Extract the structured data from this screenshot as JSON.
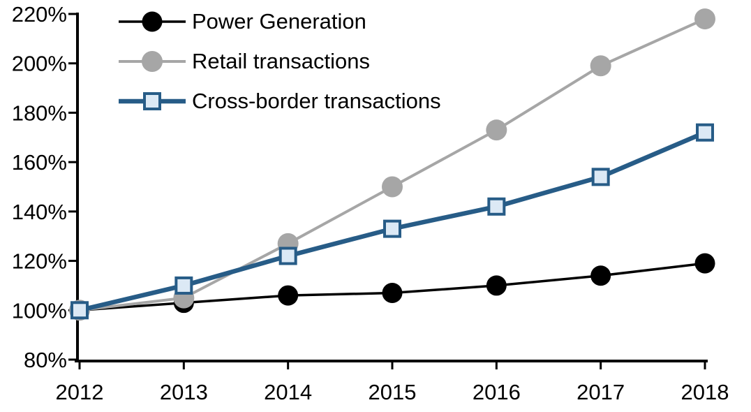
{
  "chart_data": {
    "type": "line",
    "title": "",
    "xlabel": "",
    "ylabel": "",
    "x": [
      "2012",
      "2013",
      "2014",
      "2015",
      "2016",
      "2017",
      "2018"
    ],
    "y_axis": {
      "min": 80,
      "max": 220,
      "step": 20,
      "unit": "%"
    },
    "grid": false,
    "legend_position": "top-left-inside",
    "background_color": "#FFFFFF",
    "axis_color": "#000000",
    "series": [
      {
        "name": "Power Generation",
        "color": "#000000",
        "marker": "circle",
        "marker_fill": "#000000",
        "marker_size": 29,
        "line_width": 3.5,
        "values": [
          100,
          103,
          106,
          107,
          110,
          114,
          119
        ]
      },
      {
        "name": "Retail transactions",
        "color": "#A6A6A6",
        "marker": "circle",
        "marker_fill": "#A6A6A6",
        "marker_size": 30,
        "line_width": 4,
        "values": [
          100,
          105,
          127,
          150,
          173,
          199,
          218
        ]
      },
      {
        "name": "Cross-border transactions",
        "color": "#275C87",
        "marker": "square",
        "marker_fill": "#DCE9F5",
        "marker_size": 26,
        "line_width": 6.5,
        "values": [
          100,
          110,
          122,
          133,
          142,
          154,
          172
        ]
      }
    ]
  }
}
